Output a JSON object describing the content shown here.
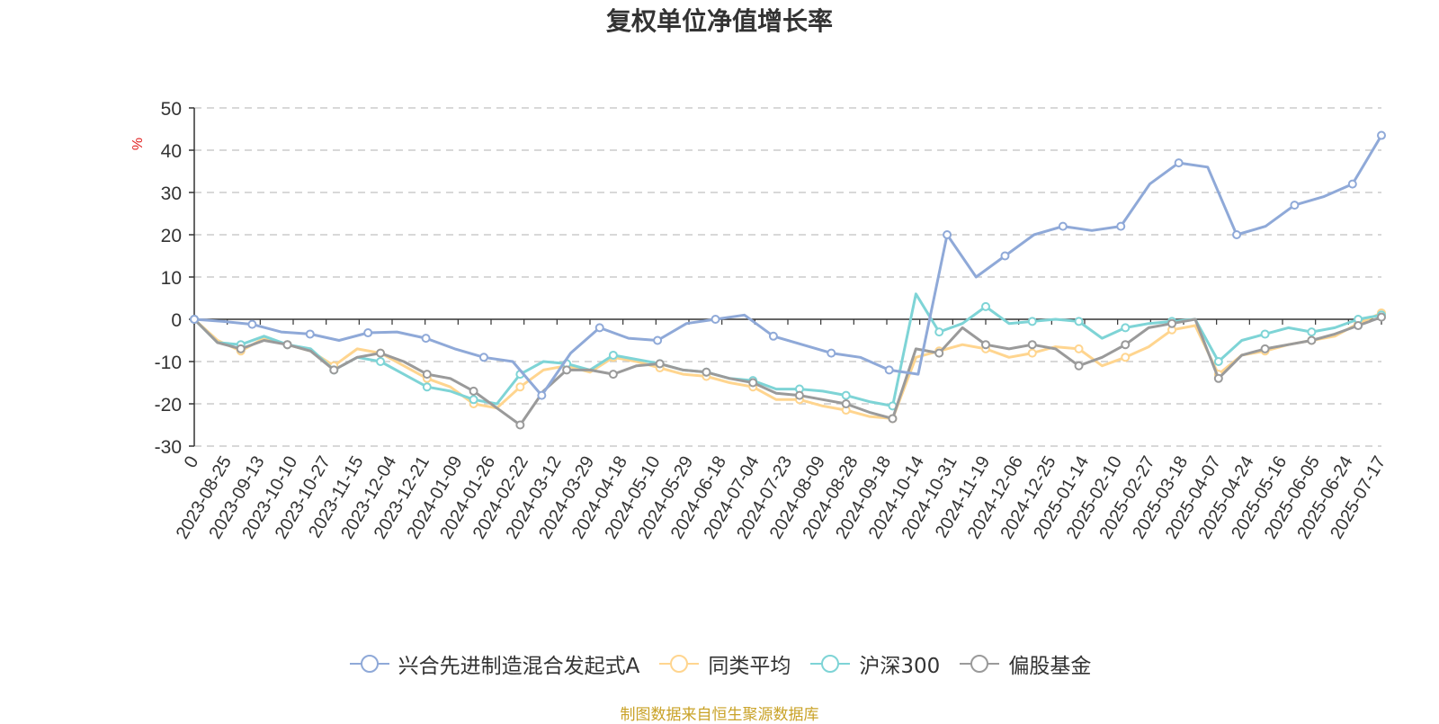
{
  "chart_data": {
    "type": "line",
    "title": "复权单位净值增长率",
    "ylabel": "%",
    "ylim": [
      -30,
      50
    ],
    "yticks": [
      50,
      40,
      30,
      20,
      10,
      0,
      -10,
      -20,
      -30
    ],
    "grid": true,
    "legend_position": "bottom",
    "xtick_labels": [
      "0",
      "2023-08-25",
      "2023-09-13",
      "2023-10-10",
      "2023-10-27",
      "2023-11-15",
      "2023-12-04",
      "2023-12-21",
      "2024-01-09",
      "2024-01-26",
      "2024-02-22",
      "2024-03-12",
      "2024-03-29",
      "2024-04-18",
      "2024-05-10",
      "2024-05-29",
      "2024-06-18",
      "2024-07-04",
      "2024-07-23",
      "2024-08-09",
      "2024-08-28",
      "2024-09-18",
      "2024-10-14",
      "2024-10-31",
      "2024-11-19",
      "2024-12-06",
      "2024-12-25",
      "2025-01-14",
      "2025-02-10",
      "2025-02-27",
      "2025-03-18",
      "2025-04-07",
      "2025-04-24",
      "2025-05-16",
      "2025-06-05",
      "2025-06-24",
      "2025-07-17"
    ],
    "series": [
      {
        "name": "兴合先进制造混合发起式A",
        "color": "#8fa9d8",
        "values": [
          0,
          -0.5,
          -1.2,
          -3,
          -3.5,
          -5,
          -3.2,
          -3,
          -4.5,
          -7,
          -9,
          -10,
          -18,
          -8,
          -2,
          -4.5,
          -5,
          -1,
          0,
          1,
          -4,
          -6,
          -8,
          -9,
          -12,
          -13,
          20,
          10,
          15,
          20,
          22,
          21,
          22,
          32,
          37,
          36,
          20,
          22,
          27,
          29,
          32,
          43.5
        ]
      },
      {
        "name": "同类平均",
        "color": "#ffd58f",
        "values": [
          0,
          -5,
          -7.5,
          -4.5,
          -6,
          -7.5,
          -11,
          -7,
          -8,
          -11,
          -14,
          -16,
          -20,
          -21,
          -16,
          -12,
          -11,
          -12.5,
          -9,
          -10,
          -11.5,
          -13,
          -13.5,
          -15,
          -16,
          -19,
          -19,
          -20.5,
          -21.5,
          -23,
          -23.5,
          -9,
          -7.5,
          -6,
          -7,
          -9,
          -8,
          -6.5,
          -7,
          -11,
          -9,
          -6.5,
          -2.5,
          -1.5,
          -13,
          -8.5,
          -7.5,
          -6,
          -5,
          -4,
          -1,
          1.5
        ]
      },
      {
        "name": "沪深300",
        "color": "#7ed4d6",
        "values": [
          0,
          -5.5,
          -6,
          -4,
          -6,
          -7,
          -12,
          -9,
          -10,
          -13,
          -16,
          -17,
          -19,
          -20,
          -13,
          -10,
          -10.5,
          -12,
          -8.5,
          -9.5,
          -10.5,
          -12,
          -12.5,
          -14,
          -14.5,
          -16.5,
          -16.5,
          -17,
          -18,
          -19.5,
          -20.5,
          6,
          -3,
          -1,
          3,
          -1,
          -0.5,
          0,
          -0.5,
          -4.5,
          -2,
          -1,
          -0.5,
          0,
          -10,
          -5,
          -3.5,
          -2,
          -3,
          -2,
          0,
          1
        ]
      },
      {
        "name": "偏股基金",
        "color": "#9a9a9a",
        "values": [
          0,
          -5.5,
          -7,
          -5,
          -6,
          -7.5,
          -12,
          -9,
          -8,
          -10,
          -13,
          -14,
          -17,
          -21,
          -25,
          -17,
          -12,
          -12,
          -13,
          -11,
          -10.5,
          -12,
          -12.5,
          -14,
          -15,
          -17.5,
          -18,
          -19,
          -20,
          -22,
          -23.5,
          -7,
          -8,
          -2,
          -6,
          -7,
          -6,
          -7,
          -11,
          -9,
          -6,
          -2,
          -1,
          0,
          -14,
          -8.5,
          -7,
          -6,
          -5,
          -3.5,
          -1.5,
          0.5
        ]
      }
    ]
  },
  "source_note": "制图数据来自恒生聚源数据库"
}
